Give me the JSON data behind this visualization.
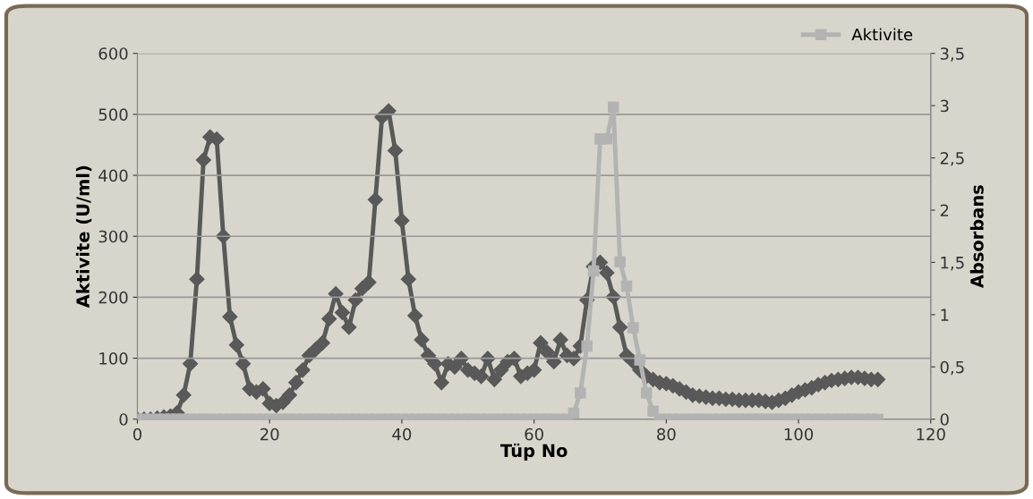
{
  "chart_data": {
    "type": "line",
    "xlabel": "Tüp No",
    "ylabel": "Aktivite (U/ml)",
    "y2label": "Absorbans",
    "xlim": [
      0,
      120
    ],
    "xticks": [
      0,
      20,
      40,
      60,
      80,
      100,
      120
    ],
    "ylim": [
      0,
      600
    ],
    "yticks": [
      0,
      100,
      200,
      300,
      400,
      500,
      600
    ],
    "y2lim": [
      0,
      3.5
    ],
    "y2ticks": [
      0,
      {
        "value": 0.5,
        "label": "0,5"
      },
      1,
      {
        "value": 1.5,
        "label": "1,5"
      },
      2,
      {
        "value": 2.5,
        "label": "2,5"
      },
      3,
      {
        "value": 3.5,
        "label": "3,5"
      }
    ],
    "grid": "y",
    "legend": "top right",
    "x": [
      0,
      1,
      2,
      3,
      4,
      5,
      6,
      7,
      8,
      9,
      10,
      11,
      12,
      13,
      14,
      15,
      16,
      17,
      18,
      19,
      20,
      21,
      22,
      23,
      24,
      25,
      26,
      27,
      28,
      29,
      30,
      31,
      32,
      33,
      34,
      35,
      36,
      37,
      38,
      39,
      40,
      41,
      42,
      43,
      44,
      45,
      46,
      47,
      48,
      49,
      50,
      51,
      52,
      53,
      54,
      55,
      56,
      57,
      58,
      59,
      60,
      61,
      62,
      63,
      64,
      65,
      66,
      67,
      68,
      69,
      70,
      71,
      72,
      73,
      74,
      75,
      76,
      77,
      78,
      79,
      80,
      81,
      82,
      83,
      84,
      85,
      86,
      87,
      88,
      89,
      90,
      91,
      92,
      93,
      94,
      95,
      96,
      97,
      98,
      99,
      100,
      101,
      102,
      103,
      104,
      105,
      106,
      107,
      108,
      109,
      110,
      111,
      112
    ],
    "series": [
      {
        "name": "Aktivite",
        "color": "#b3b3b3",
        "marker": "square",
        "values": [
          0,
          0,
          0,
          0,
          0,
          0,
          0,
          0,
          0,
          0,
          0,
          0,
          0,
          0,
          0,
          0,
          0,
          0,
          0,
          0,
          0,
          0,
          0,
          0,
          0,
          0,
          0,
          0,
          0,
          0,
          0,
          0,
          0,
          0,
          0,
          0,
          0,
          0,
          0,
          0,
          0,
          0,
          0,
          0,
          0,
          0,
          0,
          0,
          0,
          0,
          0,
          0,
          0,
          0,
          0,
          0,
          0,
          0,
          0,
          0,
          0,
          0,
          0,
          0,
          0,
          0,
          10,
          43,
          120,
          243,
          460,
          460,
          512,
          258,
          218,
          150,
          97,
          43,
          13,
          0,
          0,
          0,
          0,
          0,
          0,
          0,
          0,
          0,
          0,
          0,
          0,
          0,
          0,
          0,
          0,
          0,
          0,
          0,
          0,
          0,
          0,
          0,
          0,
          0,
          0,
          0,
          0,
          0,
          0,
          0,
          0,
          0,
          0
        ]
      },
      {
        "color": "#595959",
        "marker": "diamond",
        "axis": "y2",
        "values": [
          0,
          0,
          0,
          0.01,
          0.02,
          0.03,
          0.06,
          0.23,
          0.53,
          1.34,
          2.48,
          2.7,
          2.68,
          1.75,
          0.98,
          0.71,
          0.53,
          0.29,
          0.26,
          0.29,
          0.15,
          0.13,
          0.16,
          0.23,
          0.35,
          0.47,
          0.61,
          0.67,
          0.73,
          0.96,
          1.2,
          1.02,
          0.88,
          1.14,
          1.25,
          1.31,
          2.1,
          2.89,
          2.95,
          2.57,
          1.9,
          1.34,
          0.99,
          0.76,
          0.61,
          0.53,
          0.35,
          0.53,
          0.5,
          0.58,
          0.47,
          0.44,
          0.41,
          0.58,
          0.38,
          0.47,
          0.55,
          0.58,
          0.41,
          0.44,
          0.47,
          0.73,
          0.64,
          0.55,
          0.76,
          0.61,
          0.58,
          0.7,
          1.14,
          1.46,
          1.5,
          1.4,
          1.17,
          0.88,
          0.61,
          0.55,
          0.47,
          0.41,
          0.38,
          0.35,
          0.34,
          0.32,
          0.29,
          0.26,
          0.23,
          0.22,
          0.21,
          0.2,
          0.2,
          0.19,
          0.19,
          0.18,
          0.18,
          0.18,
          0.18,
          0.17,
          0.16,
          0.18,
          0.2,
          0.23,
          0.26,
          0.28,
          0.3,
          0.33,
          0.35,
          0.37,
          0.38,
          0.39,
          0.4,
          0.4,
          0.39,
          0.38,
          0.38
        ]
      }
    ]
  }
}
